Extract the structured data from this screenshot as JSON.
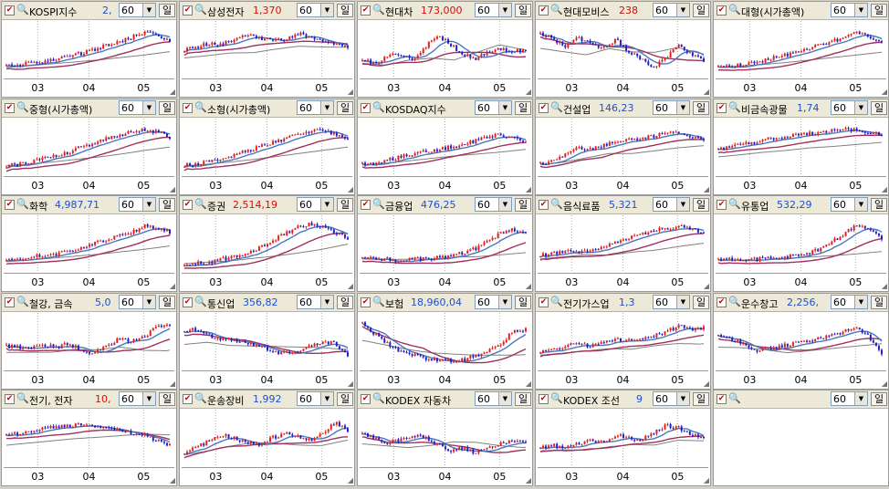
{
  "window": {
    "period_unit_label": "일",
    "empty_panel_period": "60"
  },
  "axis_labels": [
    "03",
    "04",
    "05"
  ],
  "colors": {
    "up": "#e0201e",
    "down": "#2020c8",
    "ma_short": "#4a78c0",
    "ma_mid": "#a03060",
    "ma_long": "#808080",
    "value_blue": "#1d4fd1",
    "value_red": "#d01010"
  },
  "panels": [
    {
      "name": "KOSPI지수",
      "value": "2,",
      "value_color": "blue",
      "period": "60",
      "unit": "일"
    },
    {
      "name": "삼성전자",
      "value": "1,370",
      "value_color": "red",
      "period": "60",
      "unit": "일"
    },
    {
      "name": "현대차",
      "value": "173,000",
      "value_color": "red",
      "period": "60",
      "unit": "일"
    },
    {
      "name": "현대모비스",
      "value": "238",
      "value_color": "red",
      "period": "60",
      "unit": "일"
    },
    {
      "name": "대형(시가총액)",
      "value": "",
      "value_color": "blue",
      "period": "60",
      "unit": "일"
    },
    {
      "name": "중형(시가총액)",
      "value": "",
      "value_color": "blue",
      "period": "60",
      "unit": "일"
    },
    {
      "name": "소형(시가총액)",
      "value": "",
      "value_color": "blue",
      "period": "60",
      "unit": "일"
    },
    {
      "name": "KOSDAQ지수",
      "value": "",
      "value_color": "blue",
      "period": "60",
      "unit": "일"
    },
    {
      "name": "건설업",
      "value": "146,23",
      "value_color": "blue",
      "period": "60",
      "unit": "일"
    },
    {
      "name": "비금속광물",
      "value": "1,74",
      "value_color": "blue",
      "period": "60",
      "unit": "일"
    },
    {
      "name": "화학",
      "value": "4,987,71",
      "value_color": "blue",
      "period": "60",
      "unit": "일"
    },
    {
      "name": "증권",
      "value": "2,514,19",
      "value_color": "red",
      "period": "60",
      "unit": "일"
    },
    {
      "name": "금융업",
      "value": "476,25",
      "value_color": "blue",
      "period": "60",
      "unit": "일"
    },
    {
      "name": "음식료품",
      "value": "5,321",
      "value_color": "blue",
      "period": "60",
      "unit": "일"
    },
    {
      "name": "유통업",
      "value": "532,29",
      "value_color": "blue",
      "period": "60",
      "unit": "일"
    },
    {
      "name": "철강, 금속",
      "value": "5,0",
      "value_color": "blue",
      "period": "60",
      "unit": "일"
    },
    {
      "name": "통신업",
      "value": "356,82",
      "value_color": "blue",
      "period": "60",
      "unit": "일"
    },
    {
      "name": "보험",
      "value": "18,960,04",
      "value_color": "blue",
      "period": "60",
      "unit": "일"
    },
    {
      "name": "전기가스업",
      "value": "1,3",
      "value_color": "blue",
      "period": "60",
      "unit": "일"
    },
    {
      "name": "운수창고",
      "value": "2,256,",
      "value_color": "blue",
      "period": "60",
      "unit": "일"
    },
    {
      "name": "전기, 전자",
      "value": "10,",
      "value_color": "red",
      "period": "60",
      "unit": "일"
    },
    {
      "name": "운송장비",
      "value": "1,992",
      "value_color": "blue",
      "period": "60",
      "unit": "일"
    },
    {
      "name": "KODEX 자동차",
      "value": "",
      "value_color": "blue",
      "period": "60",
      "unit": "일"
    },
    {
      "name": "KODEX 조선",
      "value": "9",
      "value_color": "blue",
      "period": "60",
      "unit": "일"
    },
    {
      "name": "",
      "value": "",
      "value_color": "blue",
      "period": "60",
      "unit": "일"
    }
  ],
  "chart_data": [
    {
      "type": "line",
      "title": "KOSPI지수",
      "x_ticks": [
        "03",
        "04",
        "05"
      ],
      "trend": [
        0.15,
        0.18,
        0.22,
        0.26,
        0.3,
        0.36,
        0.42,
        0.5,
        0.58,
        0.66,
        0.74,
        0.86,
        0.78,
        0.66
      ]
    },
    {
      "type": "line",
      "title": "삼성전자",
      "x_ticks": [
        "03",
        "04",
        "05"
      ],
      "trend": [
        0.5,
        0.55,
        0.62,
        0.6,
        0.7,
        0.78,
        0.72,
        0.68,
        0.7,
        0.82,
        0.76,
        0.68,
        0.62,
        0.55
      ]
    },
    {
      "type": "line",
      "title": "현대차",
      "x_ticks": [
        "03",
        "04",
        "05"
      ],
      "trend": [
        0.3,
        0.2,
        0.35,
        0.4,
        0.3,
        0.55,
        0.8,
        0.6,
        0.4,
        0.3,
        0.45,
        0.5,
        0.45,
        0.5
      ]
    },
    {
      "type": "line",
      "title": "현대모비스",
      "x_ticks": [
        "03",
        "04",
        "05"
      ],
      "trend": [
        0.85,
        0.7,
        0.55,
        0.75,
        0.6,
        0.55,
        0.7,
        0.45,
        0.3,
        0.15,
        0.3,
        0.6,
        0.4,
        0.25
      ]
    },
    {
      "type": "line",
      "title": "대형(시가총액)",
      "x_ticks": [
        "03",
        "04",
        "05"
      ],
      "trend": [
        0.15,
        0.17,
        0.2,
        0.24,
        0.3,
        0.36,
        0.42,
        0.48,
        0.58,
        0.66,
        0.72,
        0.84,
        0.75,
        0.66
      ]
    },
    {
      "type": "line",
      "title": "중형(시가총액)",
      "x_ticks": [
        "03",
        "04",
        "05"
      ],
      "trend": [
        0.12,
        0.15,
        0.2,
        0.26,
        0.32,
        0.4,
        0.5,
        0.58,
        0.66,
        0.74,
        0.8,
        0.86,
        0.8,
        0.7
      ]
    },
    {
      "type": "line",
      "title": "소형(시가총액)",
      "x_ticks": [
        "03",
        "04",
        "05"
      ],
      "trend": [
        0.12,
        0.15,
        0.2,
        0.26,
        0.34,
        0.42,
        0.5,
        0.58,
        0.68,
        0.76,
        0.82,
        0.84,
        0.76,
        0.68
      ]
    },
    {
      "type": "line",
      "title": "KOSDAQ지수",
      "x_ticks": [
        "03",
        "04",
        "05"
      ],
      "trend": [
        0.15,
        0.18,
        0.24,
        0.3,
        0.36,
        0.4,
        0.44,
        0.5,
        0.55,
        0.62,
        0.7,
        0.76,
        0.68,
        0.6
      ]
    },
    {
      "type": "line",
      "title": "건설업",
      "x_ticks": [
        "03",
        "04",
        "05"
      ],
      "trend": [
        0.15,
        0.22,
        0.35,
        0.48,
        0.45,
        0.52,
        0.6,
        0.64,
        0.66,
        0.72,
        0.82,
        0.8,
        0.7,
        0.6
      ]
    },
    {
      "type": "line",
      "title": "비금속광물",
      "x_ticks": [
        "03",
        "04",
        "05"
      ],
      "trend": [
        0.45,
        0.5,
        0.56,
        0.6,
        0.66,
        0.68,
        0.72,
        0.76,
        0.8,
        0.84,
        0.86,
        0.85,
        0.8,
        0.75
      ]
    },
    {
      "type": "line",
      "title": "화학",
      "x_ticks": [
        "03",
        "04",
        "05"
      ],
      "trend": [
        0.15,
        0.18,
        0.22,
        0.26,
        0.3,
        0.36,
        0.42,
        0.5,
        0.58,
        0.66,
        0.74,
        0.86,
        0.82,
        0.74
      ]
    },
    {
      "type": "line",
      "title": "증권",
      "x_ticks": [
        "03",
        "04",
        "05"
      ],
      "trend": [
        0.08,
        0.1,
        0.12,
        0.18,
        0.24,
        0.32,
        0.42,
        0.56,
        0.7,
        0.84,
        0.9,
        0.86,
        0.72,
        0.62
      ]
    },
    {
      "type": "line",
      "title": "금융업",
      "x_ticks": [
        "03",
        "04",
        "05"
      ],
      "trend": [
        0.25,
        0.2,
        0.18,
        0.15,
        0.2,
        0.18,
        0.22,
        0.26,
        0.3,
        0.4,
        0.55,
        0.72,
        0.8,
        0.7
      ]
    },
    {
      "type": "line",
      "title": "음식료품",
      "x_ticks": [
        "03",
        "04",
        "05"
      ],
      "trend": [
        0.25,
        0.3,
        0.35,
        0.3,
        0.38,
        0.42,
        0.52,
        0.6,
        0.68,
        0.76,
        0.82,
        0.84,
        0.8,
        0.72
      ]
    },
    {
      "type": "line",
      "title": "유통업",
      "x_ticks": [
        "03",
        "04",
        "05"
      ],
      "trend": [
        0.2,
        0.18,
        0.15,
        0.18,
        0.2,
        0.22,
        0.25,
        0.3,
        0.38,
        0.52,
        0.7,
        0.88,
        0.8,
        0.62
      ]
    },
    {
      "type": "line",
      "title": "철강, 금속",
      "x_ticks": [
        "03",
        "04",
        "05"
      ],
      "trend": [
        0.4,
        0.38,
        0.35,
        0.42,
        0.38,
        0.45,
        0.3,
        0.25,
        0.4,
        0.55,
        0.5,
        0.6,
        0.8,
        0.85
      ]
    },
    {
      "type": "line",
      "title": "통신업",
      "x_ticks": [
        "03",
        "04",
        "05"
      ],
      "trend": [
        0.7,
        0.75,
        0.6,
        0.55,
        0.5,
        0.45,
        0.4,
        0.3,
        0.25,
        0.3,
        0.4,
        0.5,
        0.45,
        0.2
      ]
    },
    {
      "type": "line",
      "title": "보험",
      "x_ticks": [
        "03",
        "04",
        "05"
      ],
      "trend": [
        0.85,
        0.65,
        0.45,
        0.3,
        0.22,
        0.15,
        0.12,
        0.1,
        0.12,
        0.2,
        0.3,
        0.45,
        0.7,
        0.75
      ]
    },
    {
      "type": "line",
      "title": "전기가스업",
      "x_ticks": [
        "03",
        "04",
        "05"
      ],
      "trend": [
        0.3,
        0.35,
        0.4,
        0.45,
        0.4,
        0.5,
        0.55,
        0.5,
        0.55,
        0.6,
        0.7,
        0.8,
        0.75,
        0.78
      ]
    },
    {
      "type": "line",
      "title": "운수창고",
      "x_ticks": [
        "03",
        "04",
        "05"
      ],
      "trend": [
        0.6,
        0.55,
        0.45,
        0.3,
        0.35,
        0.4,
        0.45,
        0.5,
        0.55,
        0.6,
        0.7,
        0.8,
        0.6,
        0.2
      ]
    },
    {
      "type": "line",
      "title": "전기, 전자",
      "x_ticks": [
        "03",
        "04",
        "05"
      ],
      "trend": [
        0.55,
        0.6,
        0.65,
        0.7,
        0.72,
        0.75,
        0.78,
        0.72,
        0.7,
        0.65,
        0.6,
        0.55,
        0.45,
        0.35
      ]
    },
    {
      "type": "line",
      "title": "운송장비",
      "x_ticks": [
        "03",
        "04",
        "05"
      ],
      "trend": [
        0.2,
        0.3,
        0.45,
        0.55,
        0.5,
        0.4,
        0.35,
        0.5,
        0.6,
        0.55,
        0.45,
        0.6,
        0.8,
        0.65
      ]
    },
    {
      "type": "line",
      "title": "KODEX 자동차",
      "x_ticks": [
        "03",
        "04",
        "05"
      ],
      "trend": [
        0.6,
        0.5,
        0.4,
        0.45,
        0.55,
        0.5,
        0.35,
        0.25,
        0.3,
        0.2,
        0.3,
        0.4,
        0.45,
        0.4
      ]
    },
    {
      "type": "line",
      "title": "KODEX 조선",
      "x_ticks": [
        "03",
        "04",
        "05"
      ],
      "trend": [
        0.3,
        0.35,
        0.3,
        0.4,
        0.45,
        0.4,
        0.55,
        0.5,
        0.45,
        0.6,
        0.75,
        0.7,
        0.55,
        0.5
      ]
    }
  ]
}
